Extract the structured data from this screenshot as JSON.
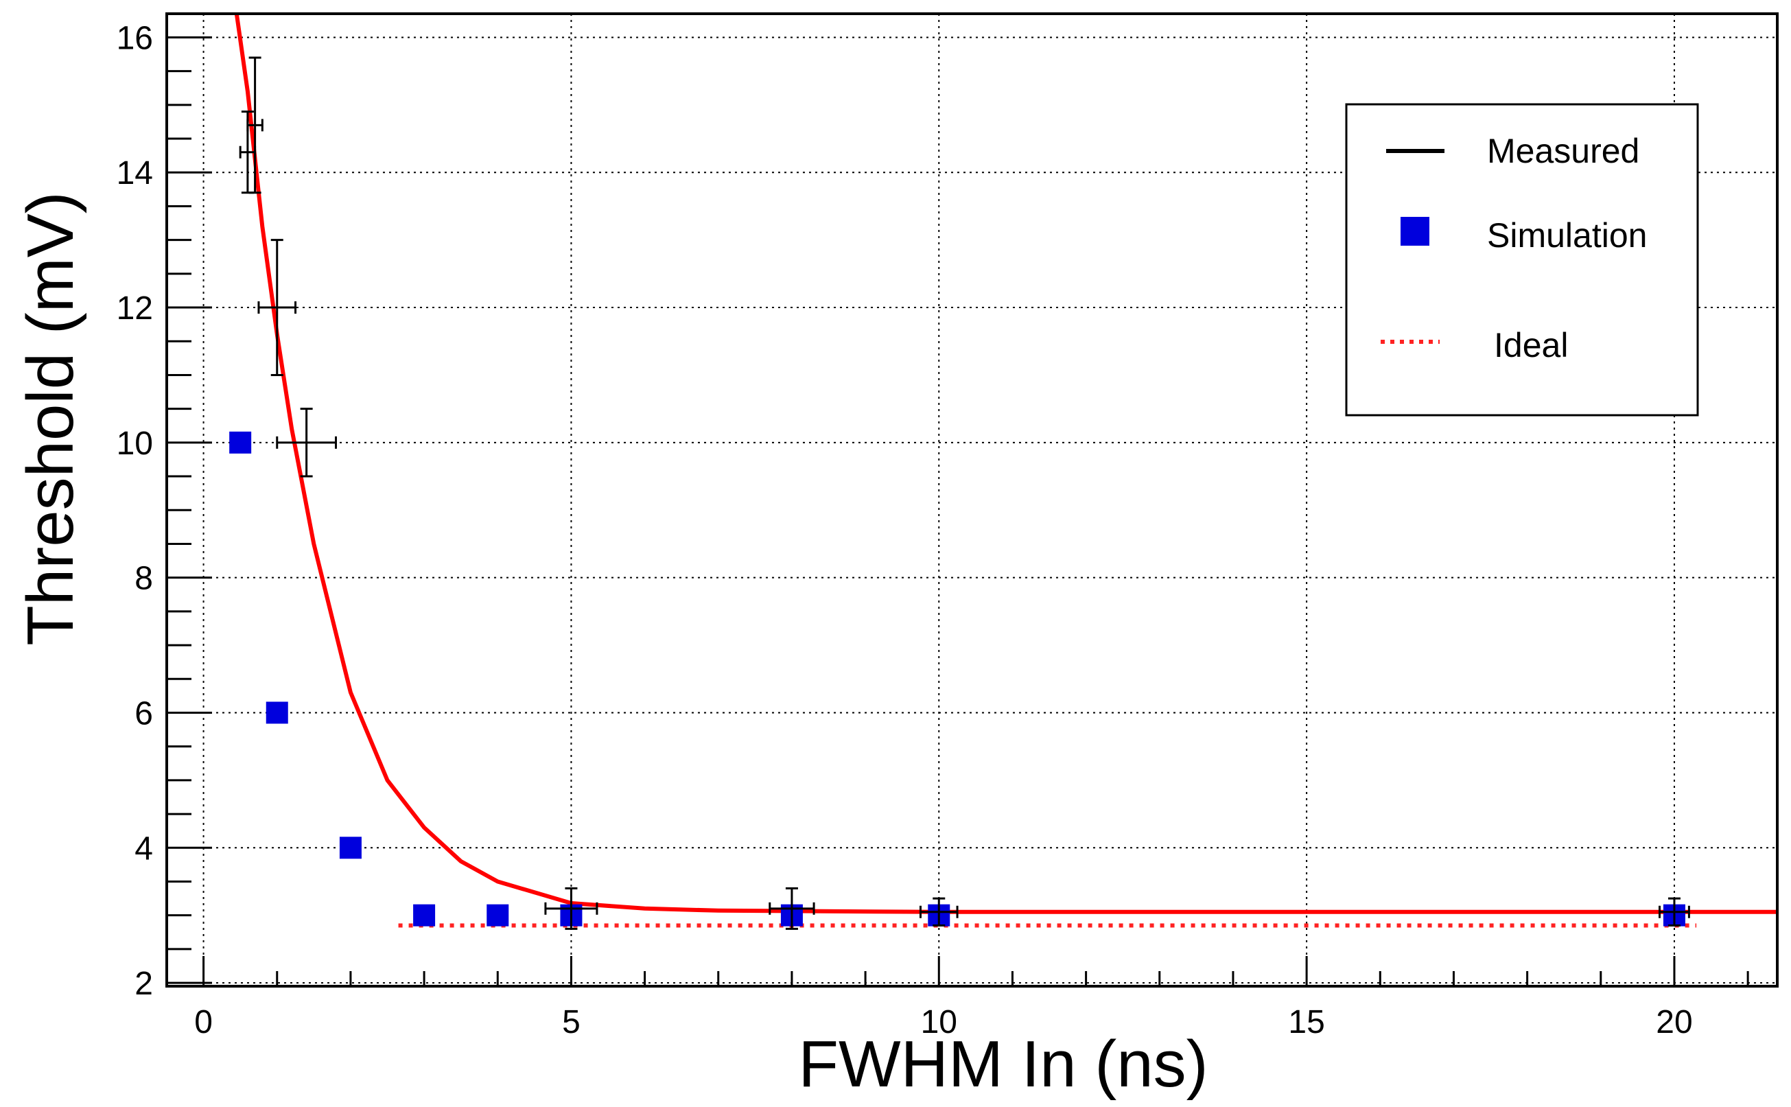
{
  "chart_data": {
    "type": "scatter",
    "title": "",
    "xlabel": "FWHM In (ns)",
    "ylabel": "Threshold (mV)",
    "xlim": [
      -0.5,
      21.4
    ],
    "ylim": [
      1.95,
      16.35
    ],
    "grid": true,
    "x_ticks": [
      0,
      5,
      10,
      15,
      20
    ],
    "x_tick_labels": [
      "0",
      "5",
      "10",
      "15",
      "20"
    ],
    "y_ticks": [
      2,
      4,
      6,
      8,
      10,
      12,
      14,
      16
    ],
    "y_tick_labels": [
      "2",
      "4",
      "6",
      "8",
      "10",
      "12",
      "14",
      "16"
    ],
    "legend_position": "top-right",
    "series": [
      {
        "name": "Measured",
        "kind": "errorbar",
        "color": "#000000",
        "points": [
          {
            "x": 0.6,
            "y": 14.3,
            "xerr": 0.1,
            "yerr": 0.6
          },
          {
            "x": 0.7,
            "y": 14.7,
            "xerr": 0.1,
            "yerr": 1.0
          },
          {
            "x": 1.0,
            "y": 12.0,
            "xerr": 0.25,
            "yerr": 1.0
          },
          {
            "x": 1.4,
            "y": 10.0,
            "xerr": 0.4,
            "yerr": 0.5
          },
          {
            "x": 5.0,
            "y": 3.1,
            "xerr": 0.35,
            "yerr": 0.3
          },
          {
            "x": 8.0,
            "y": 3.1,
            "xerr": 0.3,
            "yerr": 0.3
          },
          {
            "x": 10.0,
            "y": 3.05,
            "xerr": 0.25,
            "yerr": 0.2
          },
          {
            "x": 20.0,
            "y": 3.05,
            "xerr": 0.2,
            "yerr": 0.2
          }
        ]
      },
      {
        "name": "Simulation",
        "kind": "markers",
        "color": "#0000dd",
        "x": [
          0.5,
          1.0,
          2.0,
          3.0,
          4.0,
          5.0,
          8.0,
          10.0,
          20.0
        ],
        "y": [
          10.0,
          6.0,
          4.0,
          3.0,
          3.0,
          3.0,
          3.0,
          3.0,
          3.0
        ]
      },
      {
        "name": "fit curve",
        "kind": "line",
        "color": "#ff0000",
        "x": [
          0.45,
          0.6,
          0.8,
          1.0,
          1.2,
          1.5,
          2.0,
          2.5,
          3.0,
          3.5,
          4.0,
          5.0,
          6.0,
          7.0,
          10.0,
          15.0,
          20.0,
          21.4
        ],
        "y": [
          16.35,
          15.2,
          13.2,
          11.6,
          10.2,
          8.5,
          6.3,
          5.0,
          4.3,
          3.8,
          3.5,
          3.18,
          3.1,
          3.07,
          3.05,
          3.05,
          3.05,
          3.05
        ]
      },
      {
        "name": "Ideal",
        "kind": "dotted-line",
        "color": "#ff2222",
        "x": [
          2.65,
          20.3
        ],
        "y": [
          2.85,
          2.85
        ]
      }
    ]
  },
  "legend": {
    "items": [
      {
        "label": "Measured",
        "symbol": "line",
        "color": "#000000"
      },
      {
        "label": "Simulation",
        "symbol": "square",
        "color": "#0000dd"
      },
      {
        "label": "Ideal",
        "symbol": "dotted",
        "color": "#ff2222"
      }
    ]
  }
}
